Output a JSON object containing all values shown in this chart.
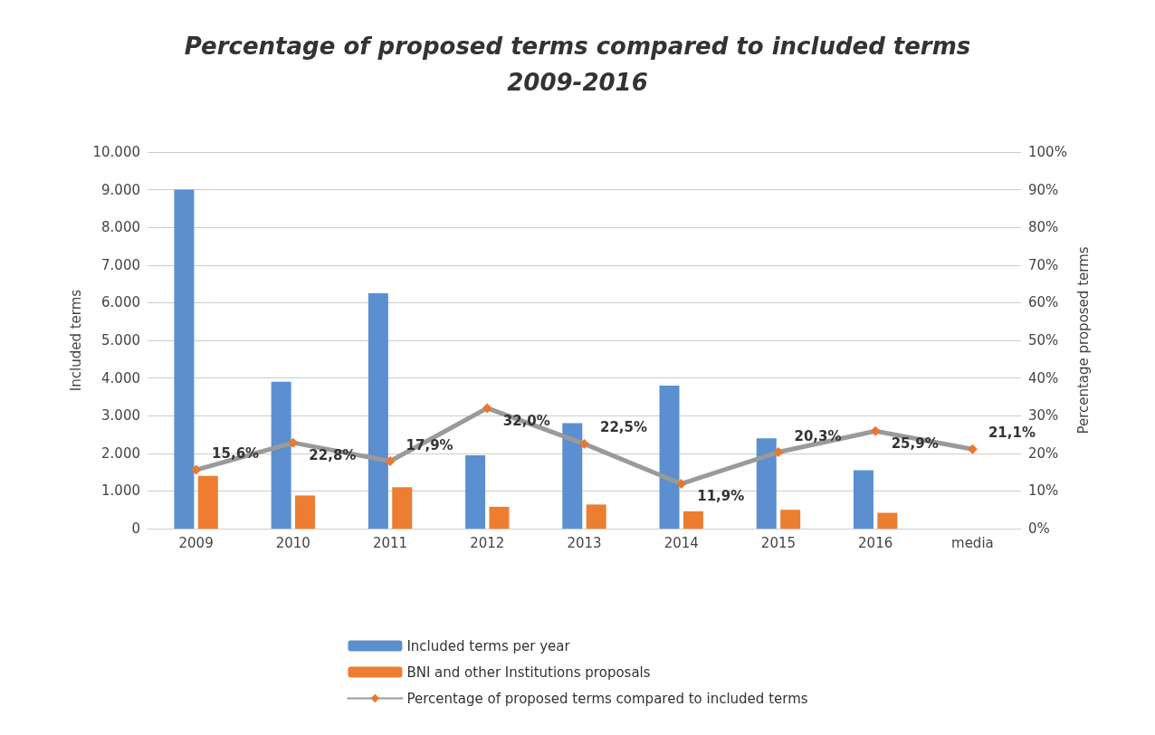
{
  "chart_data": {
    "type": "bar",
    "title": "Percentage of proposed terms compared to included terms\n2009-2016",
    "ylabel": "Included terms",
    "y2label": "Percentage proposed terms",
    "categories": [
      "2009",
      "2010",
      "2011",
      "2012",
      "2013",
      "2014",
      "2015",
      "2016",
      "media"
    ],
    "series": [
      {
        "name": "Included terms per year",
        "color": "#5b8fd0",
        "values": [
          9000,
          3900,
          6250,
          1950,
          2800,
          3800,
          2400,
          1550,
          null
        ]
      },
      {
        "name": "BNI and other Institutions proposals",
        "color": "#ed7d31",
        "values": [
          1400,
          880,
          1100,
          580,
          640,
          460,
          500,
          420,
          null
        ]
      },
      {
        "name": "Percentage of proposed terms compared to included terms",
        "type": "line",
        "axis": "y2",
        "color": "#9a9a9a",
        "colors": [
          "#e8782f",
          "#e8782f",
          "#e8782f",
          "#e8782f",
          "#e8782f",
          "#e8782f",
          "#e8782f",
          "#e8782f",
          "#e8782f"
        ],
        "marker": "diamond",
        "values": [
          15.6,
          22.8,
          17.9,
          32.0,
          22.5,
          11.9,
          20.3,
          25.9,
          21.1
        ],
        "value_labels": [
          "15,6%",
          "22,8%",
          "17,9%",
          "32,0%",
          "22,5%",
          "11,9%",
          "20,3%",
          "25,9%",
          "21,1%"
        ]
      }
    ],
    "ylim": [
      0,
      10000
    ],
    "yticks": [
      0,
      {
        "value": 1000,
        "label": "1.000"
      },
      {
        "value": 2000,
        "label": "2.000"
      },
      {
        "value": 3000,
        "label": "3.000"
      },
      {
        "value": 4000,
        "label": "4.000"
      },
      {
        "value": 5000,
        "label": "5.000"
      },
      {
        "value": 6000,
        "label": "6.000"
      },
      {
        "value": 7000,
        "label": "7.000"
      },
      {
        "value": 8000,
        "label": "8.000"
      },
      {
        "value": 9000,
        "label": "9.000"
      },
      {
        "value": 10000,
        "label": "10.000"
      }
    ],
    "y2lim": [
      0,
      100
    ],
    "y2ticks": [
      {
        "value": 0,
        "label": "0%"
      },
      {
        "value": 10,
        "label": "10%"
      },
      {
        "value": 20,
        "label": "20%"
      },
      {
        "value": 30,
        "label": "30%"
      },
      {
        "value": 40,
        "label": "40%"
      },
      {
        "value": 50,
        "label": "50%"
      },
      {
        "value": 60,
        "label": "60%"
      },
      {
        "value": 70,
        "label": "70%"
      },
      {
        "value": 80,
        "label": "80%"
      },
      {
        "value": 90,
        "label": "90%"
      },
      {
        "value": 100,
        "label": "100%"
      }
    ],
    "grid": "y",
    "legend": "bottom"
  }
}
